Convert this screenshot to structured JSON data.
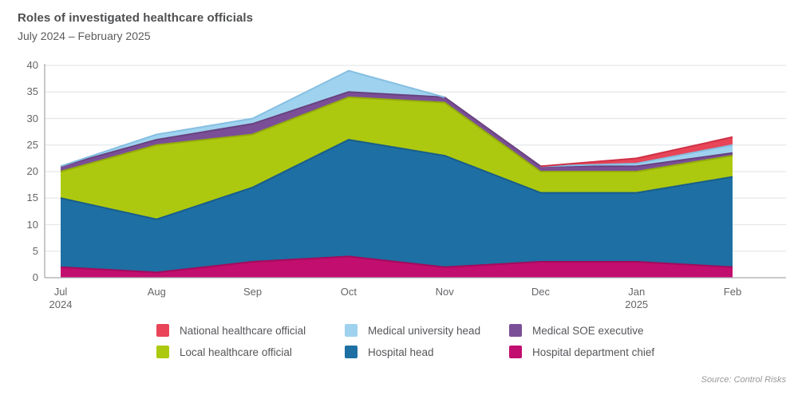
{
  "title": "Roles of investigated healthcare officials",
  "subtitle": "July 2024 – February 2025",
  "source": "Source: Control Risks",
  "colors": {
    "national": "#e84558",
    "university": "#9fd2ee",
    "soe": "#7b4f97",
    "local": "#adc90f",
    "hospital_head": "#1e6fa3",
    "department_chief": "#c20e6e",
    "gridline": "#e5e7e9",
    "axis": "#a9aaad"
  },
  "legend": {
    "items": [
      {
        "label": "National healthcare official",
        "color": "#e84558"
      },
      {
        "label": "Medical university head",
        "color": "#9fd2ee"
      },
      {
        "label": "Medical SOE executive",
        "color": "#7b4f97"
      },
      {
        "label": "Local healthcare official",
        "color": "#adc90f"
      },
      {
        "label": "Hospital head",
        "color": "#1e6fa3"
      },
      {
        "label": "Hospital department chief",
        "color": "#c20e6e"
      }
    ]
  },
  "chart_data": {
    "type": "area",
    "stacked": true,
    "title": "Roles of investigated healthcare officials",
    "subtitle": "July 2024 – February 2025",
    "categories": [
      "Jul",
      "Aug",
      "Sep",
      "Oct",
      "Nov",
      "Dec",
      "Jan",
      "Feb"
    ],
    "year_labels": [
      {
        "index": 0,
        "label": "2024"
      },
      {
        "index": 6,
        "label": "2025"
      }
    ],
    "ylim": [
      0,
      40
    ],
    "y_ticks": [
      0,
      5,
      10,
      15,
      20,
      25,
      30,
      35,
      40
    ],
    "grid": true,
    "legend_position": "bottom",
    "series": [
      {
        "name": "Hospital department chief",
        "color": "#c20e6e",
        "edge": "#a30b5c",
        "values": [
          2,
          1,
          3,
          4,
          2,
          3,
          3,
          2
        ]
      },
      {
        "name": "Hospital head",
        "color": "#1e6fa3",
        "edge": "#185d8a",
        "values": [
          13,
          10,
          14,
          22,
          21,
          13,
          13,
          17
        ]
      },
      {
        "name": "Local healthcare official",
        "color": "#adc90f",
        "edge": "#93ad0a",
        "values": [
          5,
          14,
          10,
          8,
          10,
          4,
          4,
          4
        ]
      },
      {
        "name": "Medical SOE executive",
        "color": "#7b4f97",
        "edge": "#68417f",
        "values": [
          1,
          1,
          2,
          1,
          1,
          1,
          1,
          0.5
        ]
      },
      {
        "name": "Medical university head",
        "color": "#9fd2ee",
        "edge": "#85bfe2",
        "values": [
          0,
          1,
          1,
          4,
          0,
          0,
          0.5,
          1.5
        ]
      },
      {
        "name": "National healthcare official",
        "color": "#e84558",
        "edge": "#cf3146",
        "values": [
          0,
          0,
          0,
          0,
          0,
          0,
          1,
          1.5
        ]
      }
    ]
  }
}
